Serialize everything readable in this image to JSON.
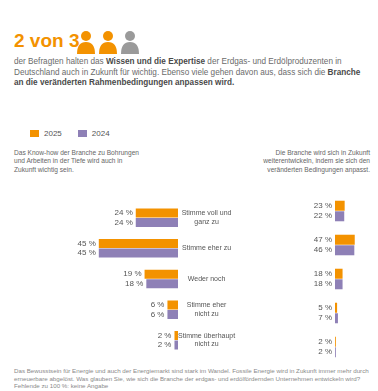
{
  "header": {
    "headline": "2 von 3",
    "text": [
      {
        "text": "der Befragten halten das ",
        "bold": false
      },
      {
        "text": "Wissen und die Expertise",
        "bold": true
      },
      {
        "text": " der Erdgas- und Erdölproduzenten in Deutschland auch in Zukunft für wichtig. Ebenso viele gehen davon aus, dass sich die ",
        "bold": false
      },
      {
        "text": "Branche an die veränderten Rahmenbedingungen anpassen wird.",
        "bold": true
      }
    ]
  },
  "chart_data": [
    {
      "type": "bar",
      "orientation": "horizontal",
      "title": "Das Know-how der Branche zu Bohrungen und Arbeiten in der Tiefe wird auch in Zukunft wichtig sein.",
      "categories": [
        "Stimme voll und ganz zu",
        "Stimme eher zu",
        "Weder noch",
        "Stimme eher nicht zu",
        "Stimme überhaupt nicht zu"
      ],
      "series": [
        {
          "name": "2025",
          "color": "#f39200",
          "values": [
            24,
            45,
            19,
            6,
            2
          ],
          "value_labels": [
            "24 %",
            "45 %",
            "19 %",
            "6 %",
            "2 %"
          ]
        },
        {
          "name": "2024",
          "color": "#8e80b6",
          "values": [
            24,
            45,
            18,
            6,
            2
          ],
          "value_labels": [
            "24 %",
            "45 %",
            "18 %",
            "6 %",
            "2 %"
          ]
        }
      ],
      "xlim": [
        0,
        50
      ],
      "grid": false,
      "data_labels": true,
      "tick_labels": "y",
      "legend": "top"
    },
    {
      "type": "bar",
      "orientation": "horizontal",
      "title": "Die Branche wird sich in Zukunft weiterentwickeln, indem sie sich den veränderten Bedingungen anpasst.",
      "categories": [
        "Stimme voll und ganz zu",
        "Stimme eher zu",
        "Weder noch",
        "Stimme eher nicht zu",
        "Stimme überhaupt nicht zu"
      ],
      "series": [
        {
          "name": "2025",
          "color": "#f39200",
          "values": [
            23,
            47,
            18,
            5,
            2
          ],
          "value_labels": [
            "23 %",
            "47 %",
            "18 %",
            "5 %",
            "2 %"
          ]
        },
        {
          "name": "2024",
          "color": "#8e80b6",
          "values": [
            22,
            46,
            18,
            7,
            2
          ],
          "value_labels": [
            "22 %",
            "46 %",
            "18 %",
            "7 %",
            "2 %"
          ]
        }
      ],
      "xlim": [
        0,
        50
      ],
      "grid": false,
      "data_labels": true,
      "tick_labels": false
    }
  ],
  "footer": "Das Bewusstsein für Energie und auch der Energiemarkt sind stark im Wandel. Fossile Energie wird in Zukunft immer mehr durch erneuerbare abgelöst. Was glauben Sie, wie sich die Branche der erdgas- und erdölfördernden Unternehmen entwickeln wird? Fehlende zu 100 %: keine Angabe"
}
